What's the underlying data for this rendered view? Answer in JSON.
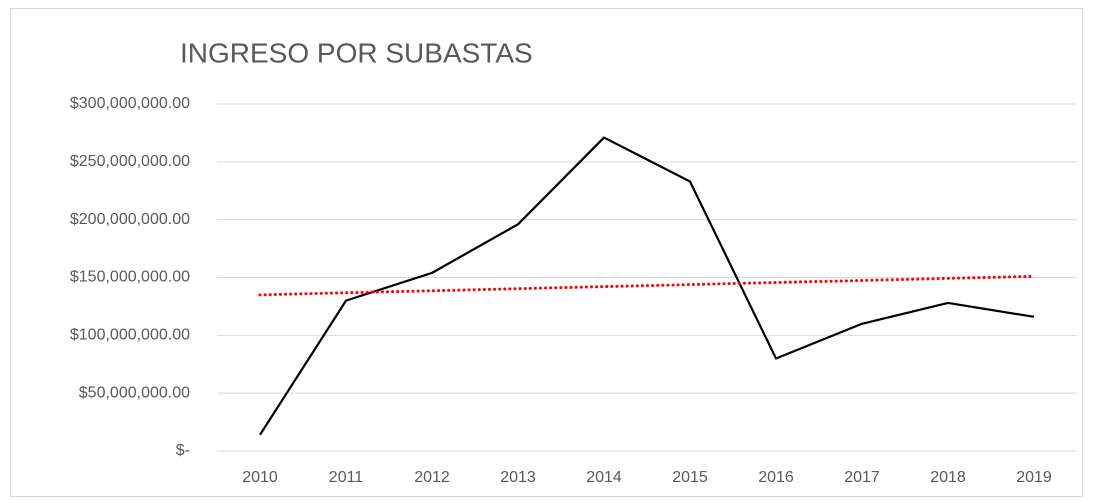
{
  "chart_data": {
    "type": "line",
    "title": "INGRESO POR SUBASTAS",
    "categories": [
      "2010",
      "2011",
      "2012",
      "2013",
      "2014",
      "2015",
      "2016",
      "2017",
      "2018",
      "2019"
    ],
    "values": [
      14000000,
      130000000,
      154000000,
      196000000,
      271000000,
      233000000,
      80000000,
      110000000,
      128000000,
      116000000
    ],
    "color": "#000000",
    "trendline": {
      "start": 135000000,
      "end": 151000000,
      "color": "#ff0000",
      "style": "dotted"
    },
    "ylim": [
      0,
      300000000
    ],
    "yticks": [
      {
        "value": 0,
        "label": "$-"
      },
      {
        "value": 50000000,
        "label": "$50,000,000.00"
      },
      {
        "value": 100000000,
        "label": "$100,000,000.00"
      },
      {
        "value": 150000000,
        "label": "$150,000,000.00"
      },
      {
        "value": 200000000,
        "label": "$200,000,000.00"
      },
      {
        "value": 250000000,
        "label": "$250,000,000.00"
      },
      {
        "value": 300000000,
        "label": "$300,000,000.00"
      }
    ],
    "grid": true
  }
}
